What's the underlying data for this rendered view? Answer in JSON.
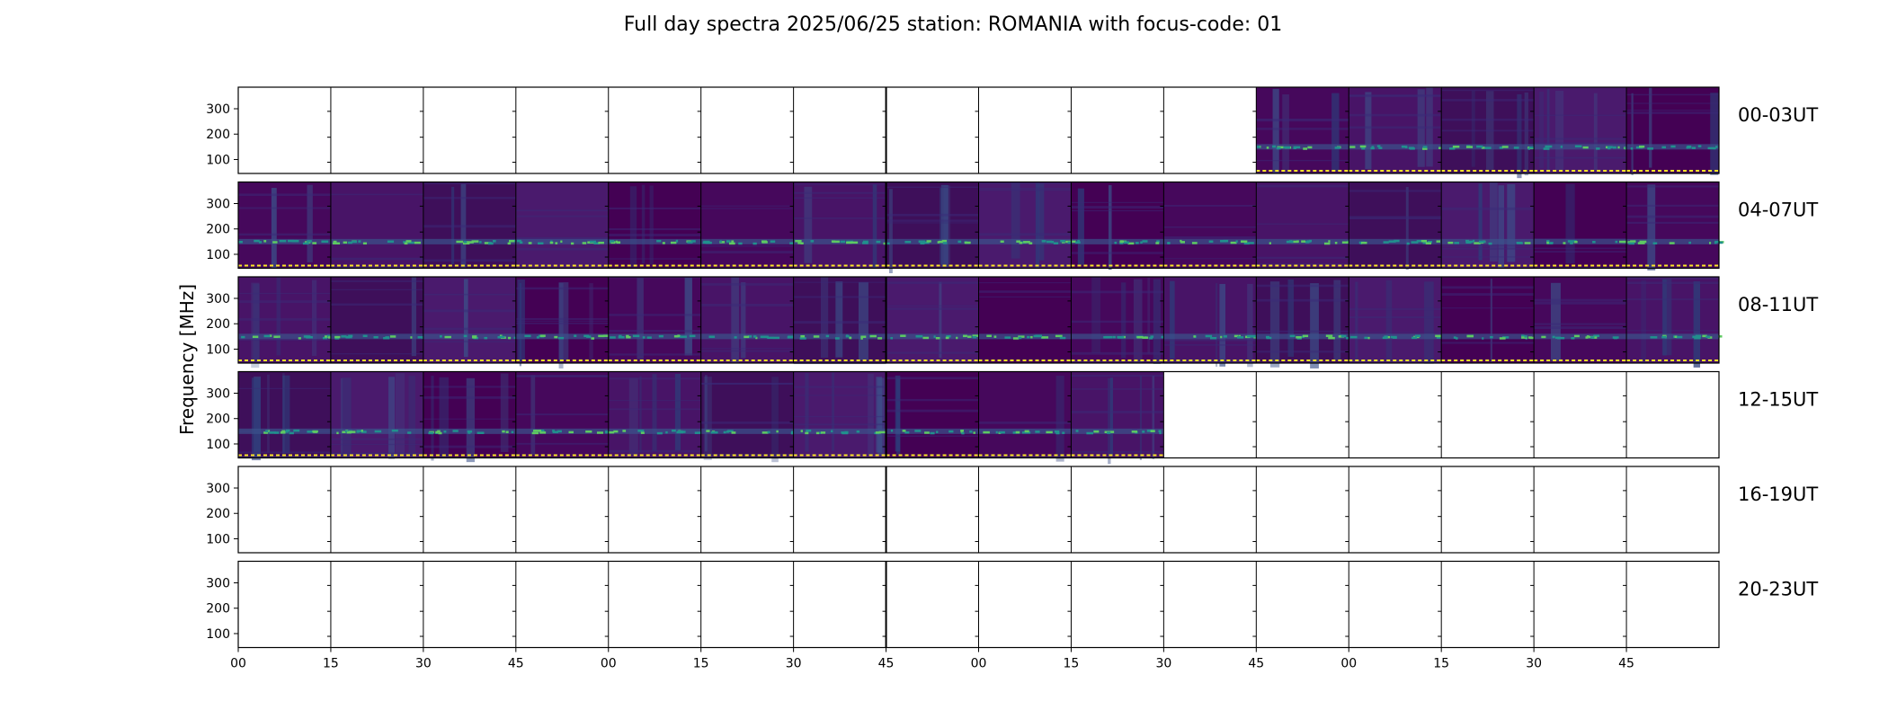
{
  "title": "Full day spectra 2025/06/25 station: ROMANIA with focus-code: 01",
  "chart_data": {
    "type": "heatmap",
    "title": "Full day spectra 2025/06/25 station: ROMANIA with focus-code: 01",
    "ylabel": "Frequency [MHz]",
    "xlabel": "",
    "yticks": [
      "100",
      "200",
      "300"
    ],
    "ylim": [
      45,
      385
    ],
    "xticks": [
      "00",
      "15",
      "30",
      "45",
      "00",
      "15",
      "30",
      "45",
      "00",
      "15",
      "30",
      "45",
      "00",
      "15",
      "30",
      "45"
    ],
    "rows": [
      {
        "label": "00-03UT",
        "start_panel": 11,
        "end_panel": 16
      },
      {
        "label": "04-07UT",
        "start_panel": 0,
        "end_panel": 16
      },
      {
        "label": "08-11UT",
        "start_panel": 0,
        "end_panel": 16
      },
      {
        "label": "12-15UT",
        "start_panel": 0,
        "end_panel": 10
      },
      {
        "label": "16-19UT",
        "start_panel": 0,
        "end_panel": 0
      },
      {
        "label": "20-23UT",
        "start_panel": 0,
        "end_panel": 0
      }
    ],
    "panels_per_row": 16,
    "panel_duration_minutes": 15,
    "colormap": {
      "low": "#440154",
      "mid": "#3b528b",
      "high": "#21908d",
      "peak": "#5ec962"
    },
    "marker_color": "#fde725"
  }
}
